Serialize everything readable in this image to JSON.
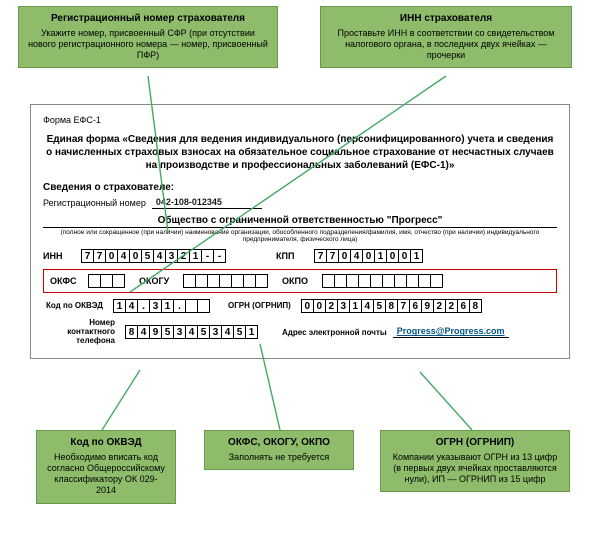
{
  "colors": {
    "callout_bg": "#8fbc6a",
    "callout_border": "#6a9948",
    "red_box": "#c00",
    "link": "#058"
  },
  "callouts": {
    "reg": {
      "title": "Регистрационный номер страхователя",
      "body": "Укажите номер, присвоенный СФР (при отсутствии нового регистрационного номера — номер, присвоенный ПФР)"
    },
    "inn": {
      "title": "ИНН страхователя",
      "body": "Проставьте ИНН в соответствии со свидетельством налогового органа, в последних двух ячейках — прочерки"
    },
    "okved": {
      "title": "Код по ОКВЭД",
      "body": "Необходимо вписать код согласно Общероссийскому классификатору ОК 029-2014"
    },
    "okfs": {
      "title": "ОКФС, ОКОГУ, ОКПО",
      "body": "Заполнять не требуется"
    },
    "ogrn": {
      "title": "ОГРН (ОГРНИП)",
      "body": "Компании указывают ОГРН из 13 цифр (в первых двух ячейках проставляются нули), ИП — ОГРНИП из 15 цифр"
    }
  },
  "form": {
    "code": "Форма EФС-1",
    "title": "Единая форма «Сведения для ведения индивидуального (персонифицированного) учета и сведения о начисленных страховых взносах на обязательное социальное страхование от несчастных случаев на производстве и профессиональных заболеваний (ЕФС-1)»",
    "section_label": "Сведения о страхователе:",
    "reg_label": "Регистрационный номер",
    "reg_value": "042-108-012345",
    "org_name": "Общество с ограниченной ответственностью \"Прогресс\"",
    "org_sub": "(полное или сокращенное (при наличии) наименование организации, обособленного подразделения/фамилия, имя, отчество (при наличии) индивидуального предпринимателя, физического лица)",
    "inn_label": "ИНН",
    "inn": [
      "7",
      "7",
      "0",
      "4",
      "0",
      "5",
      "4",
      "3",
      "2",
      "1",
      "-",
      "-"
    ],
    "kpp_label": "КПП",
    "kpp": [
      "7",
      "7",
      "0",
      "4",
      "0",
      "1",
      "0",
      "0",
      "1"
    ],
    "okfs_label": "ОКФС",
    "okfs": [
      "",
      "",
      ""
    ],
    "okogu_label": "ОКОГУ",
    "okogu": [
      "",
      "",
      "",
      "",
      "",
      "",
      ""
    ],
    "okpo_label": "ОКПО",
    "okpo": [
      "",
      "",
      "",
      "",
      "",
      "",
      "",
      "",
      "",
      ""
    ],
    "okved_label": "Код по ОКВЭД",
    "okved": [
      "1",
      "4",
      ".",
      "3",
      "1",
      ".",
      "",
      ""
    ],
    "ogrn_label": "ОГРН (ОГРНИП)",
    "ogrn": [
      "0",
      "0",
      "2",
      "3",
      "1",
      "4",
      "5",
      "8",
      "7",
      "6",
      "9",
      "2",
      "2",
      "6",
      "8"
    ],
    "phone_label": "Номер контактного телефона",
    "phone": [
      "8",
      "4",
      "9",
      "5",
      "3",
      "4",
      "5",
      "3",
      "4",
      "5",
      "1"
    ],
    "email_label": "Адрес электронной почты",
    "email": "Progress@Progress.com"
  }
}
